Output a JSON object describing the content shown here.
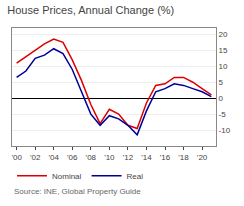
{
  "chart_data": {
    "type": "line",
    "title": "House Prices, Annual Change (%)",
    "annotations": [
      "Source: INE, Global Property Guide"
    ],
    "x": [
      2000,
      2001,
      2002,
      2003,
      2004,
      2005,
      2006,
      2007,
      2008,
      2009,
      2010,
      2011,
      2012,
      2013,
      2014,
      2015,
      2016,
      2017,
      2018,
      2019,
      2020,
      2021
    ],
    "series": [
      {
        "name": "Nominal",
        "color": "#dd0000",
        "values": [
          11.0,
          13.0,
          15.0,
          17.0,
          18.5,
          17.5,
          12.0,
          5.5,
          -2.0,
          -8.0,
          -3.5,
          -5.0,
          -8.5,
          -9.5,
          -1.5,
          4.0,
          4.5,
          6.5,
          6.5,
          5.0,
          3.0,
          1.0
        ]
      },
      {
        "name": "Real",
        "color": "#000099",
        "values": [
          6.5,
          8.5,
          12.5,
          13.5,
          15.5,
          14.0,
          9.0,
          2.0,
          -5.0,
          -8.5,
          -5.5,
          -6.5,
          -8.5,
          -11.5,
          -4.0,
          2.0,
          3.0,
          4.5,
          4.0,
          3.0,
          2.0,
          0.5
        ]
      }
    ],
    "xlim": [
      1999.5,
      2021.5
    ],
    "xticks": [
      {
        "value": 2000,
        "label": "'00"
      },
      {
        "value": 2002,
        "label": "'02"
      },
      {
        "value": 2004,
        "label": "'04"
      },
      {
        "value": 2006,
        "label": "'06"
      },
      {
        "value": 2008,
        "label": "'08"
      },
      {
        "value": 2010,
        "label": "'10"
      },
      {
        "value": 2012,
        "label": "'12"
      },
      {
        "value": 2014,
        "label": "'14"
      },
      {
        "value": 2016,
        "label": "'16"
      },
      {
        "value": 2018,
        "label": "'18"
      },
      {
        "value": 2020,
        "label": "'20"
      }
    ],
    "ylim": [
      -15,
      22
    ],
    "yticks": [
      -10,
      -5,
      0,
      5,
      10,
      15,
      20
    ],
    "grid": true,
    "legend": "lower left"
  }
}
